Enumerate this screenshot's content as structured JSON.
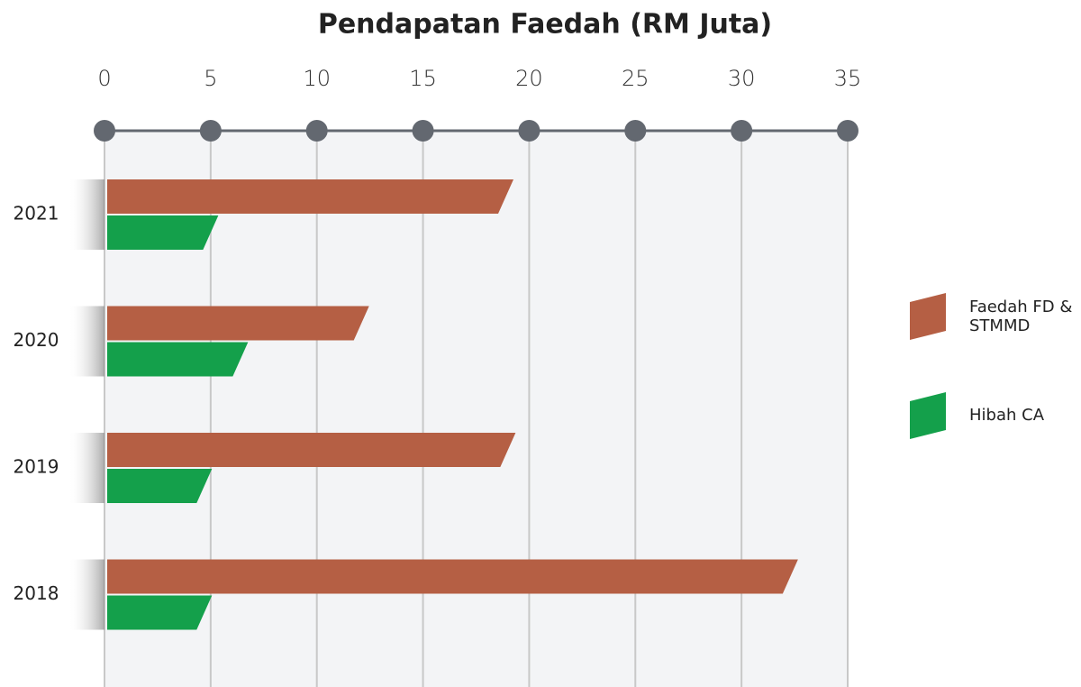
{
  "chart_data": {
    "type": "bar",
    "orientation": "horizontal",
    "title": "Pendapatan Faedah (RM Juta)",
    "categories": [
      "2021",
      "2020",
      "2019",
      "2018"
    ],
    "series": [
      {
        "name": "Faedah FD & STMMD",
        "color": "#b55f44",
        "values": [
          18.9,
          12.1,
          19.0,
          32.3
        ]
      },
      {
        "name": "Hibah CA",
        "color": "#14a04b",
        "values": [
          5.0,
          6.4,
          4.7,
          4.7
        ]
      }
    ],
    "xlim": [
      0,
      35
    ],
    "xticks": [
      0,
      5,
      10,
      15,
      20,
      25,
      30,
      35
    ],
    "grid": true,
    "legend": "right"
  }
}
